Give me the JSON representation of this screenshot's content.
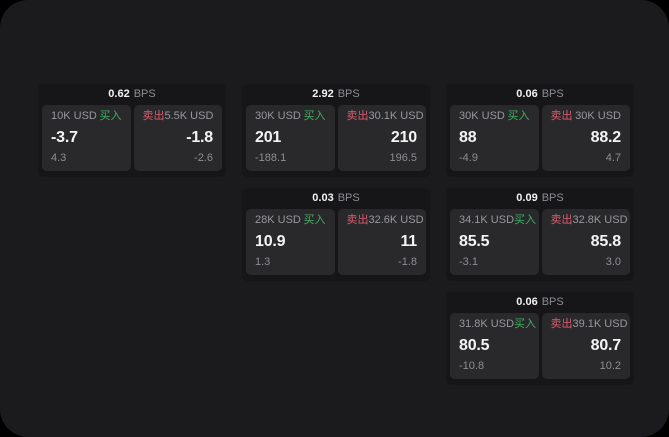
{
  "labels": {
    "bps_unit": "BPS",
    "buy": "买入",
    "sell": "卖出"
  },
  "colors": {
    "screen_bg": "#1b1b1d",
    "card_bg": "#161618",
    "panel_bg": "#29292b",
    "buy_green": "#44ad62",
    "sell_red": "#d85c6d",
    "primary_text": "#f4f4f5",
    "secondary_text": "#8e8e93"
  },
  "cards": [
    {
      "bps": "0.62",
      "buy": {
        "amount": "10K USD",
        "value": "-3.7",
        "delta": "4.3"
      },
      "sell": {
        "amount": "5.5K USD",
        "value": "-1.8",
        "delta": "-2.6"
      }
    },
    {
      "bps": "2.92",
      "buy": {
        "amount": "30K USD",
        "value": "201",
        "delta": "-188.1"
      },
      "sell": {
        "amount": "30.1K USD",
        "value": "210",
        "delta": "196.5"
      }
    },
    {
      "bps": "0.06",
      "buy": {
        "amount": "30K USD",
        "value": "88",
        "delta": "-4.9"
      },
      "sell": {
        "amount": "30K USD",
        "value": "88.2",
        "delta": "4.7"
      }
    },
    {
      "bps": "0.03",
      "buy": {
        "amount": "28K USD",
        "value": "10.9",
        "delta": "1.3"
      },
      "sell": {
        "amount": "32.6K USD",
        "value": "11",
        "delta": "-1.8"
      }
    },
    {
      "bps": "0.09",
      "buy": {
        "amount": "34.1K USD",
        "value": "85.5",
        "delta": "-3.1"
      },
      "sell": {
        "amount": "32.8K USD",
        "value": "85.8",
        "delta": "3.0"
      }
    },
    {
      "bps": "0.06",
      "buy": {
        "amount": "31.8K USD",
        "value": "80.5",
        "delta": "-10.8"
      },
      "sell": {
        "amount": "39.1K USD",
        "value": "80.7",
        "delta": "10.2"
      }
    }
  ]
}
